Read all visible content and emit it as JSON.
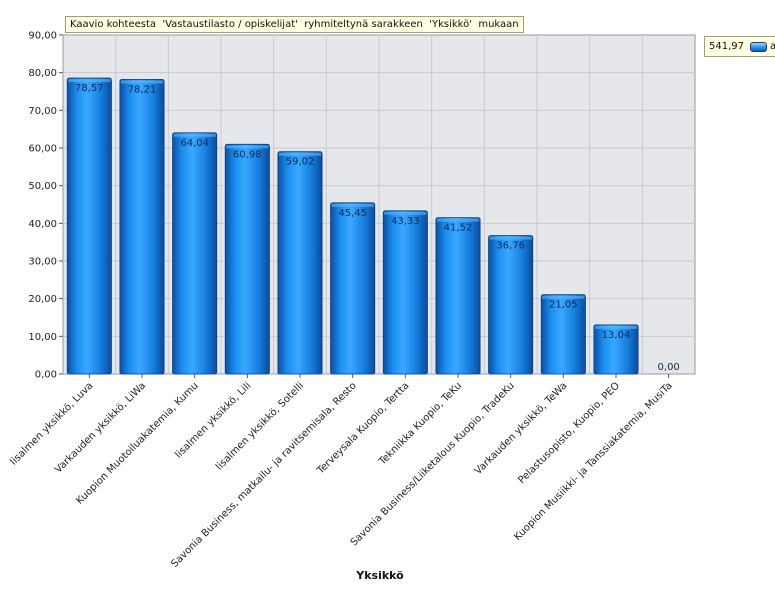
{
  "chart_data": {
    "type": "bar",
    "title": "Kaavio kohteesta  'Vastaustilasto / opiskelijat'  ryhmiteltynä sarakkeen  'Yksikkö'  mukaan",
    "xlabel": "Yksikkö",
    "ylabel": "",
    "ylim": [
      0,
      90
    ],
    "yticks": [
      "0,00",
      "10,00",
      "20,00",
      "30,00",
      "40,00",
      "50,00",
      "60,00",
      "70,00",
      "80,00",
      "90,00"
    ],
    "grid": true,
    "categories": [
      "Iisalmen yksikkö, Luva",
      "Varkauden yksikkö, LiWa",
      "Kuopion Muotoiluakatemia, Kumu",
      "Iisalmen yksikkö, Lili",
      "Iisalmen yksikkö, Sotelli",
      "Savonia Business, matkailu- ja ravitsemisala, Resto",
      "Terveysala Kuopio, Tertta",
      "Tekniikka Kuopio, TeKu",
      "Savonia Business/Liiketalous Kuopio, TradeKu",
      "Varkauden yksikkö, TeWa",
      "Pelastusopisto, Kuopio, PEO",
      "Kuopion Musiikki- ja Tanssiakatemia, MusiTa"
    ],
    "values": [
      78.57,
      78.21,
      64.04,
      60.98,
      59.02,
      45.45,
      43.33,
      41.52,
      36.76,
      21.05,
      13.04,
      0.0
    ],
    "value_labels": [
      "78,57",
      "78,21",
      "64,04",
      "60,98",
      "59,02",
      "45,45",
      "43,33",
      "41,52",
      "36,76",
      "21,05",
      "13,04",
      "0,00"
    ],
    "legend": {
      "placement": "top-right",
      "total_label": "541,97",
      "extra": "a",
      "color": "#1a8ff0"
    }
  }
}
